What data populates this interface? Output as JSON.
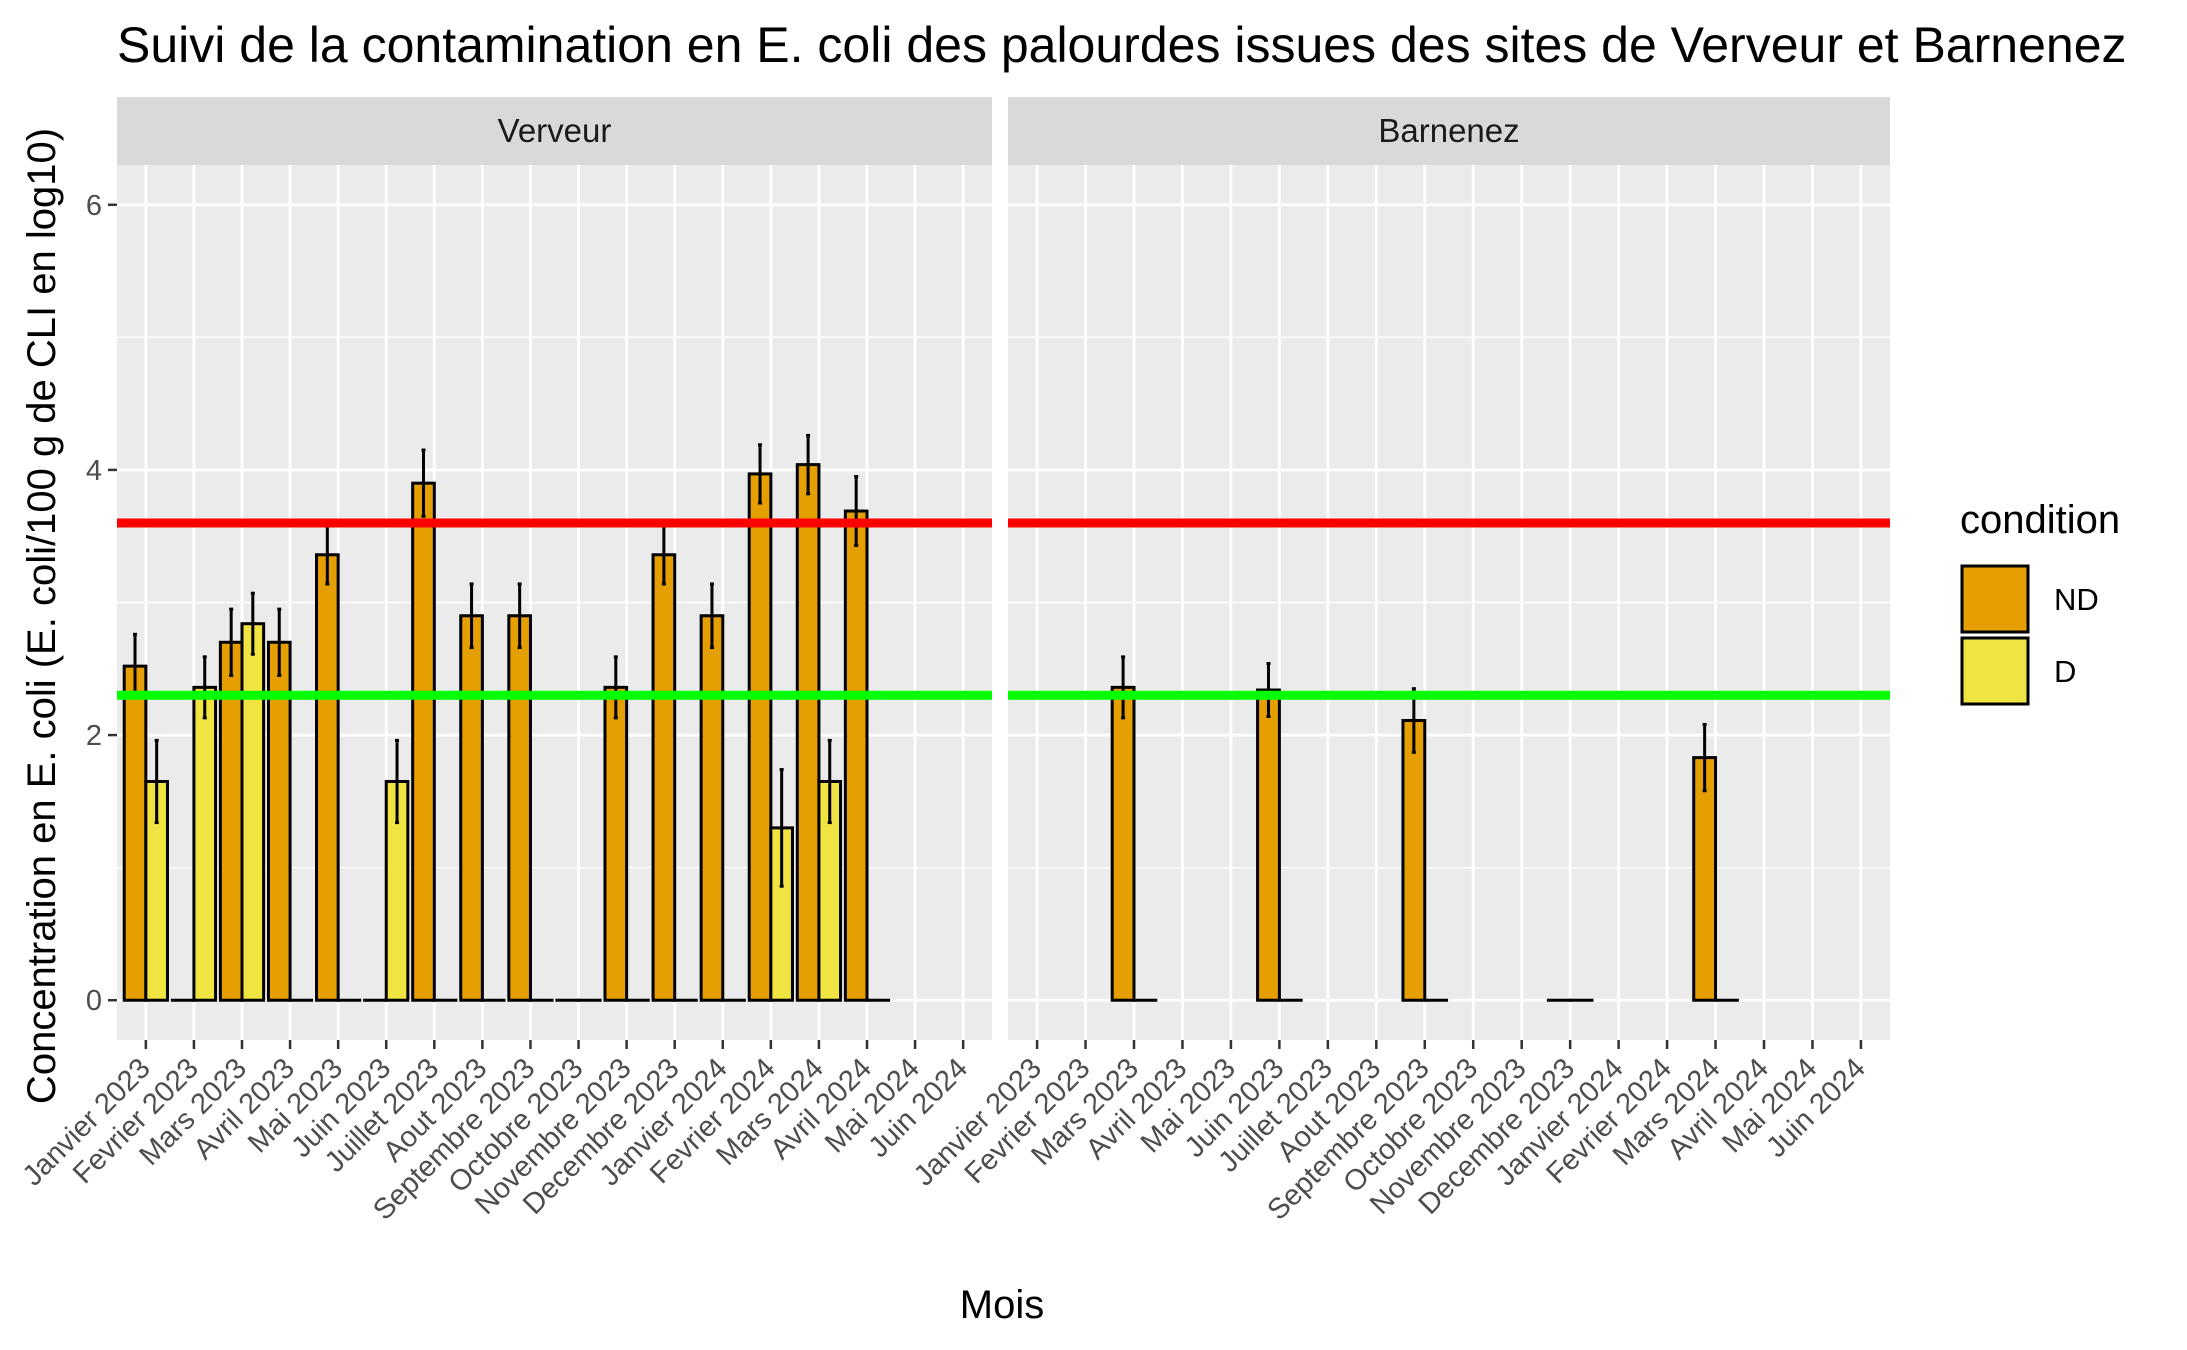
{
  "chart_data": {
    "type": "bar",
    "title": "Suivi de la contamination en E. coli des palourdes issues des sites de Verveur et Barnenez",
    "xlabel": "Mois",
    "ylabel": "Concentration en E. coli (E. coli/100 g de CLI en log10)",
    "ylim": [
      -0.3,
      6.3
    ],
    "yticks": [
      0,
      2,
      4,
      6
    ],
    "grid": true,
    "legend": {
      "title": "condition",
      "position": "right",
      "entries": [
        {
          "name": "ND",
          "color": "#E69F00"
        },
        {
          "name": "D",
          "color": "#F0E442"
        }
      ]
    },
    "reference_lines": [
      {
        "y": 3.6,
        "color": "#FF0000"
      },
      {
        "y": 2.3,
        "color": "#00FF00"
      }
    ],
    "categories": [
      "Janvier 2023",
      "Fevrier 2023",
      "Mars 2023",
      "Avril 2023",
      "Mai 2023",
      "Juin 2023",
      "Juillet 2023",
      "Aout 2023",
      "Septembre 2023",
      "Octobre 2023",
      "Novembre 2023",
      "Decembre 2023",
      "Janvier 2024",
      "Fevrier 2024",
      "Mars 2024",
      "Avril 2024",
      "Mai 2024",
      "Juin 2024"
    ],
    "facets": [
      {
        "name": "Verveur",
        "series": [
          {
            "name": "ND",
            "values": [
              2.52,
              0,
              2.7,
              2.7,
              3.36,
              0,
              3.9,
              2.9,
              2.9,
              0,
              2.36,
              3.36,
              2.9,
              3.97,
              4.04,
              3.69,
              null,
              null
            ],
            "errors": [
              0.24,
              0,
              0.25,
              0.25,
              0.22,
              0,
              0.25,
              0.24,
              0.24,
              0,
              0.23,
              0.22,
              0.24,
              0.22,
              0.22,
              0.26,
              null,
              null
            ]
          },
          {
            "name": "D",
            "values": [
              1.65,
              2.36,
              2.84,
              0,
              0,
              1.65,
              0,
              0,
              0,
              0,
              0,
              0,
              0,
              1.3,
              1.65,
              0,
              null,
              null
            ],
            "errors": [
              0.31,
              0.23,
              0.23,
              0,
              0,
              0.31,
              0,
              0,
              0,
              0,
              0,
              0,
              0,
              0.44,
              0.31,
              0,
              null,
              null
            ]
          }
        ]
      },
      {
        "name": "Barnenez",
        "series": [
          {
            "name": "ND",
            "values": [
              null,
              null,
              2.36,
              null,
              null,
              2.34,
              null,
              null,
              2.11,
              null,
              null,
              0,
              null,
              null,
              1.83,
              null,
              null,
              null
            ],
            "errors": [
              null,
              null,
              0.23,
              null,
              null,
              0.2,
              null,
              null,
              0.24,
              null,
              null,
              0,
              null,
              null,
              0.25,
              null,
              null,
              null
            ]
          },
          {
            "name": "D",
            "values": [
              null,
              null,
              0,
              null,
              null,
              0,
              null,
              null,
              0,
              null,
              null,
              0,
              null,
              null,
              0,
              null,
              null,
              null
            ],
            "errors": [
              null,
              null,
              0,
              null,
              null,
              0,
              null,
              null,
              0,
              null,
              null,
              0,
              null,
              null,
              0,
              null,
              null,
              null
            ]
          }
        ]
      }
    ]
  }
}
